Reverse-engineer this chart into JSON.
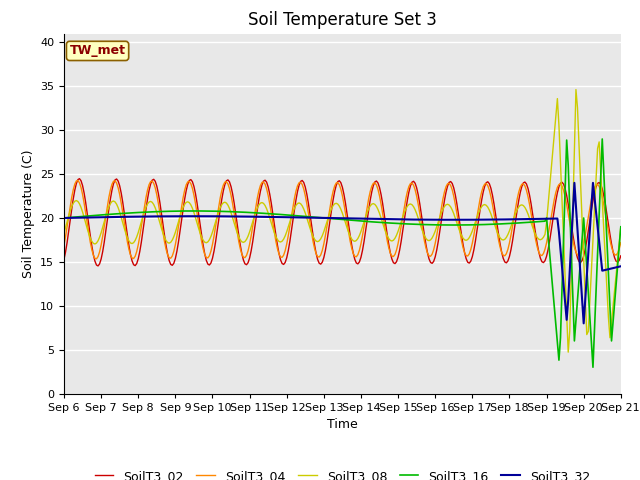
{
  "title": "Soil Temperature Set 3",
  "xlabel": "Time",
  "ylabel": "Soil Temperature (C)",
  "ylim": [
    0,
    41
  ],
  "annotation": "TW_met",
  "plot_bg_color": "#e8e8e8",
  "fig_bg_color": "#ffffff",
  "grid_color": "#ffffff",
  "series_colors": {
    "SoilT3_02": "#cc0000",
    "SoilT3_04": "#ff8800",
    "SoilT3_08": "#cccc00",
    "SoilT3_16": "#00bb00",
    "SoilT3_32": "#000099"
  },
  "x_tick_labels": [
    "Sep 6",
    "Sep 7",
    "Sep 8",
    "Sep 9",
    "Sep 10",
    "Sep 11",
    "Sep 12",
    "Sep 13",
    "Sep 14",
    "Sep 15",
    "Sep 16",
    "Sep 17",
    "Sep 18",
    "Sep 19",
    "Sep 20",
    "Sep 21"
  ],
  "x_tick_positions": [
    0,
    1,
    2,
    3,
    4,
    5,
    6,
    7,
    8,
    9,
    10,
    11,
    12,
    13,
    14,
    15
  ],
  "yticks": [
    0,
    5,
    10,
    15,
    20,
    25,
    30,
    35,
    40
  ],
  "n_days": 15,
  "pts_per_day": 24,
  "title_fontsize": 12,
  "axis_label_fontsize": 9,
  "tick_fontsize": 8,
  "legend_fontsize": 9
}
